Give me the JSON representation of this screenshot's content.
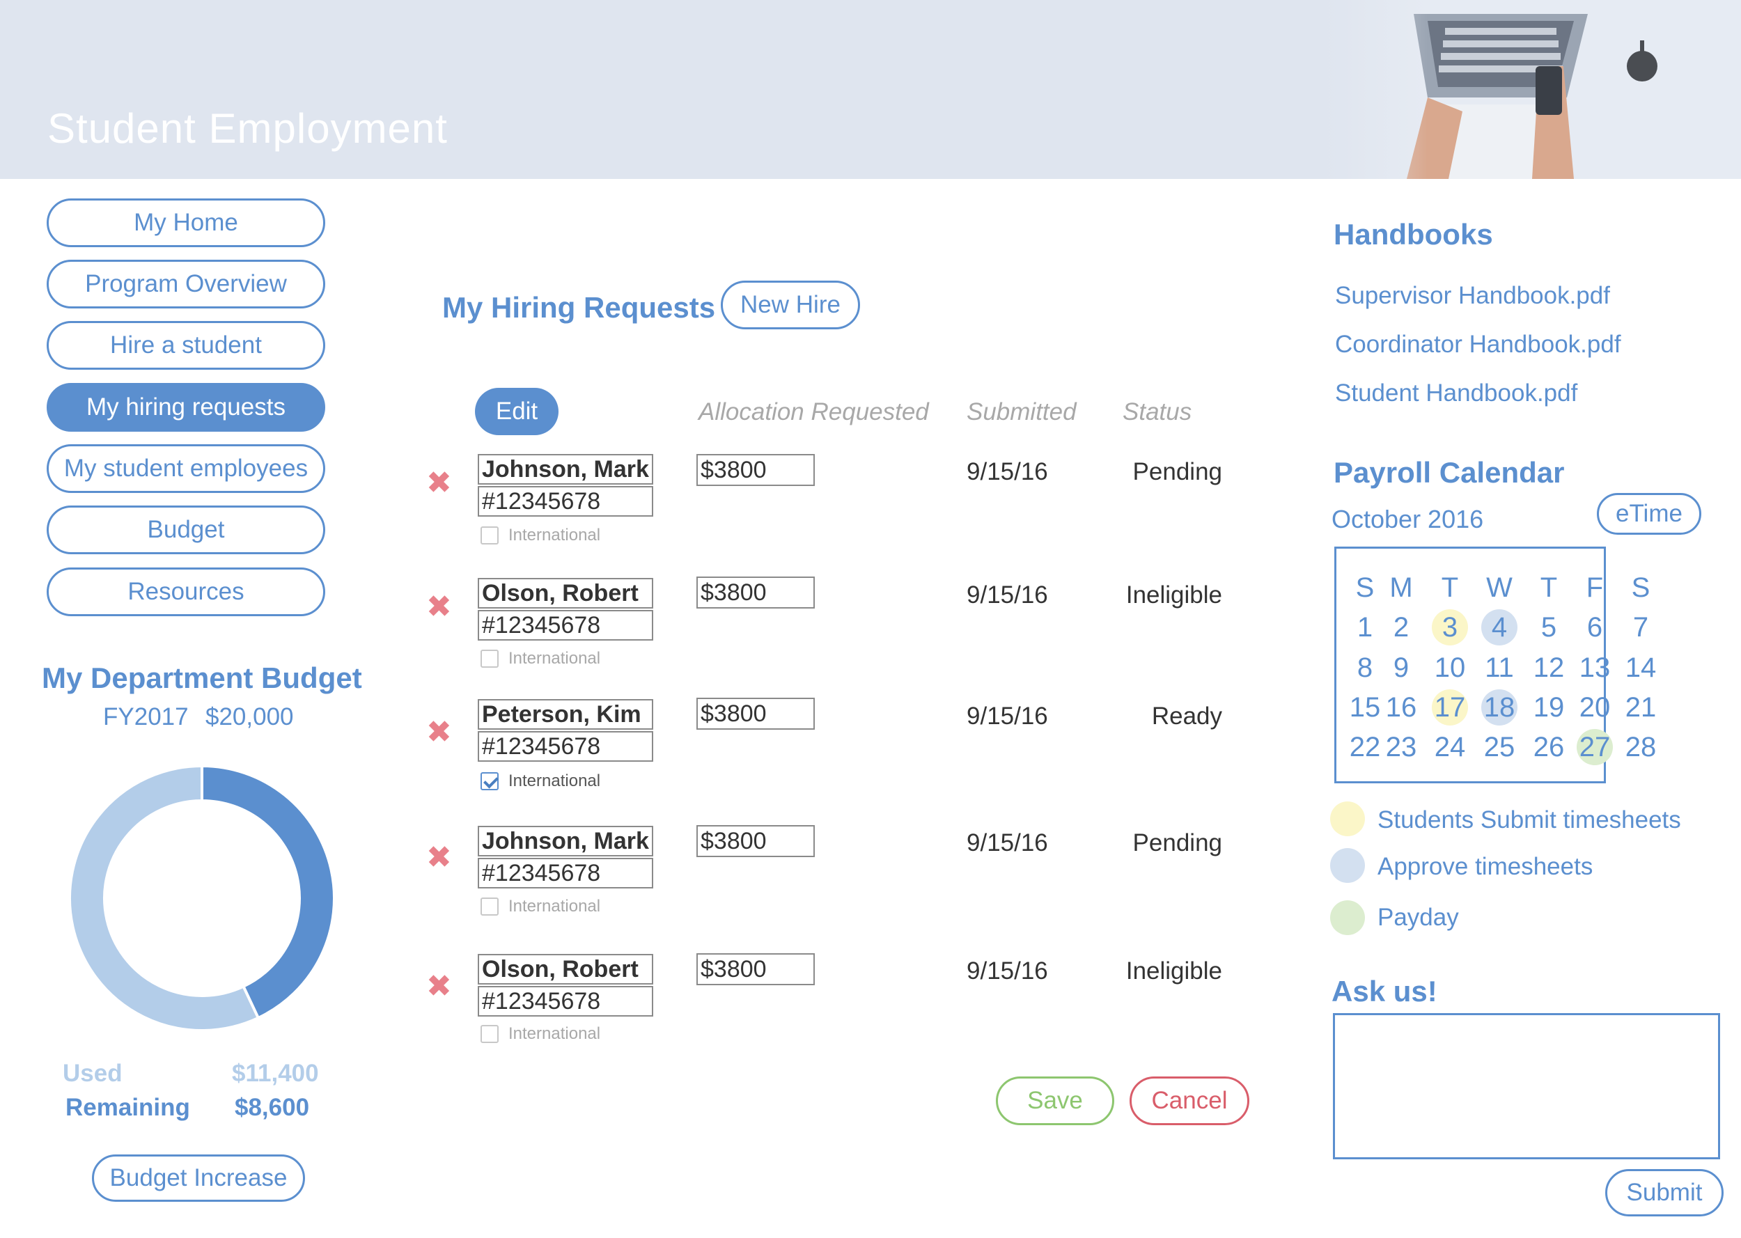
{
  "header": {
    "title": "Student Employment"
  },
  "nav": {
    "items": [
      {
        "label": "My Home",
        "active": false
      },
      {
        "label": "Program Overview",
        "active": false
      },
      {
        "label": "Hire a student",
        "active": false
      },
      {
        "label": "My hiring requests",
        "active": true
      },
      {
        "label": "My student employees",
        "active": false
      },
      {
        "label": "Budget",
        "active": false
      },
      {
        "label": "Resources",
        "active": false
      }
    ]
  },
  "budget": {
    "title": "My Department Budget",
    "fiscal_year": "FY2017",
    "total": "$20,000",
    "used_label": "Used",
    "used_value": "$11,400",
    "remaining_label": "Remaining",
    "remaining_value": "$8,600",
    "used_amount": 11400,
    "remaining_amount": 8600,
    "used_color": "#b3cde9",
    "remaining_color": "#5b8fcf",
    "increase_button": "Budget Increase"
  },
  "hiring": {
    "title": "My Hiring Requests",
    "new_hire_button": "New Hire",
    "edit_button": "Edit",
    "columns": {
      "allocation": "Allocation Requested",
      "submitted": "Submitted",
      "status": "Status"
    },
    "international_label": "International",
    "remove_icon": "✖",
    "requests": [
      {
        "name": "Johnson, Mark",
        "id": "#12345678",
        "international": false,
        "allocation": "$3800",
        "submitted": "9/15/16",
        "status": "Pending"
      },
      {
        "name": "Olson, Robert",
        "id": "#12345678",
        "international": false,
        "allocation": "$3800",
        "submitted": "9/15/16",
        "status": "Ineligible"
      },
      {
        "name": "Peterson, Kim",
        "id": "#12345678",
        "international": true,
        "allocation": "$3800",
        "submitted": "9/15/16",
        "status": "Ready"
      },
      {
        "name": "Johnson, Mark",
        "id": "#12345678",
        "international": false,
        "allocation": "$3800",
        "submitted": "9/15/16",
        "status": "Pending"
      },
      {
        "name": "Olson, Robert",
        "id": "#12345678",
        "international": false,
        "allocation": "$3800",
        "submitted": "9/15/16",
        "status": "Ineligible"
      }
    ],
    "save_button": "Save",
    "cancel_button": "Cancel",
    "save_color": "#8dc66f",
    "cancel_color": "#d95d6a"
  },
  "handbooks": {
    "title": "Handbooks",
    "links": [
      "Supervisor Handbook.pdf",
      "Coordinator Handbook.pdf",
      "Student Handbook.pdf"
    ]
  },
  "payroll": {
    "title": "Payroll Calendar",
    "month": "October 2016",
    "etime_button": "eTime",
    "weekdays": [
      "S",
      "M",
      "T",
      "W",
      "T",
      "F",
      "S"
    ],
    "weeks": [
      [
        1,
        2,
        3,
        4,
        5,
        6,
        7
      ],
      [
        8,
        9,
        10,
        11,
        12,
        13,
        14
      ],
      [
        15,
        16,
        17,
        18,
        19,
        20,
        21
      ],
      [
        22,
        23,
        24,
        25,
        26,
        27,
        28
      ]
    ],
    "highlights": {
      "3": "submit",
      "4": "approve",
      "17": "submit",
      "18": "approve",
      "27": "payday"
    },
    "legend": [
      {
        "key": "submit",
        "label": "Students Submit timesheets",
        "color": "#fbf6c8"
      },
      {
        "key": "approve",
        "label": "Approve timesheets",
        "color": "#d3e0f0"
      },
      {
        "key": "payday",
        "label": "Payday",
        "color": "#dcedcf"
      }
    ]
  },
  "ask": {
    "title": "Ask us!",
    "value": "",
    "placeholder": "",
    "submit_button": "Submit"
  },
  "icons": {
    "remove": "close-icon",
    "checkbox": "check-icon"
  }
}
